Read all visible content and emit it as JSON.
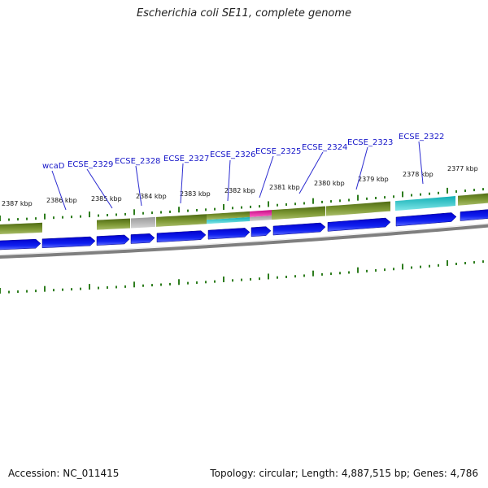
{
  "title": "Escherichia coli SE11, complete genome",
  "footer": {
    "accession": "Accession: NC_011415",
    "summary": "Topology: circular; Length: 4,887,515 bp; Genes: 4,786"
  },
  "colors": {
    "backbone": "#7f7f7f",
    "tick": "#2e7d1e",
    "forward_gene": "#0a12e0",
    "gene_label": "#1515c8",
    "leader_line": "#2a2ad0",
    "olive": "#6f8f2a",
    "grey": "#b4b4b4",
    "cyan": "#20c8cc",
    "magenta": "#e0189a"
  },
  "scale_labels": [
    "2387 kbp",
    "2386 kbp",
    "2385 kbp",
    "2384 kbp",
    "2383 kbp",
    "2382 kbp",
    "2381 kbp",
    "2380 kbp",
    "2379 kbp",
    "2378 kbp",
    "2377 kbp"
  ],
  "gene_labels": [
    "wcaD",
    "ECSE_2329",
    "ECSE_2328",
    "ECSE_2327",
    "ECSE_2326",
    "ECSE_2325",
    "ECSE_2324",
    "ECSE_2323",
    "ECSE_2322"
  ]
}
